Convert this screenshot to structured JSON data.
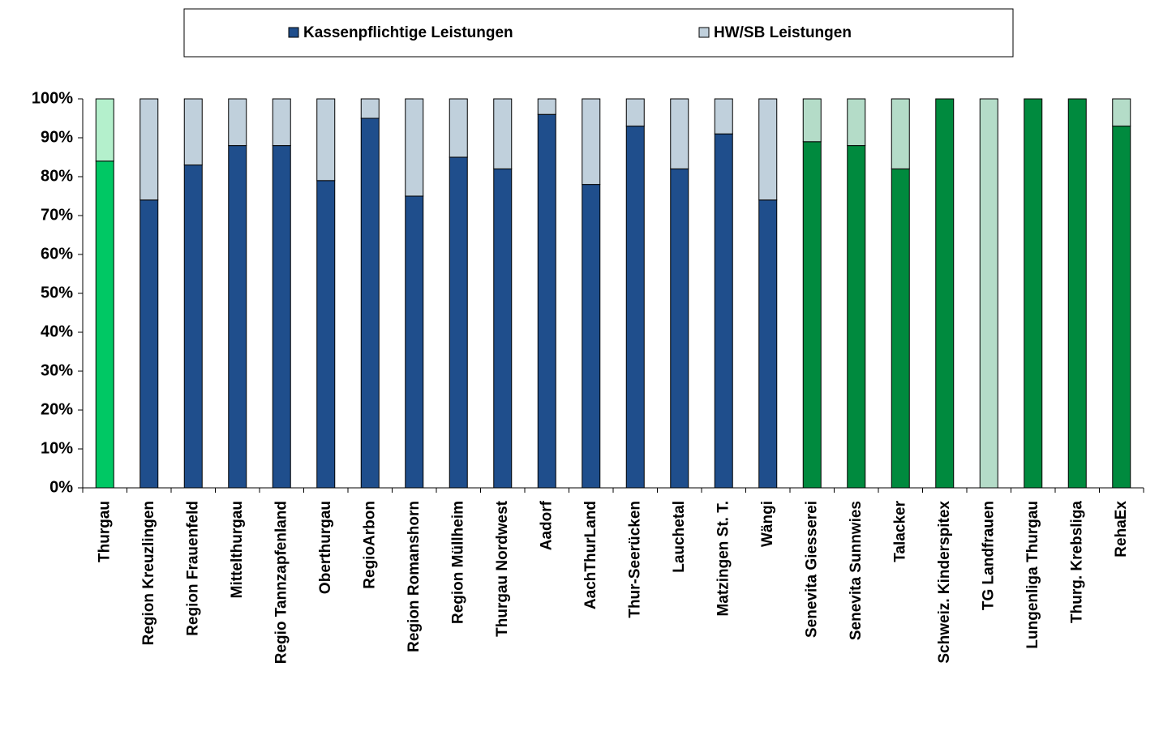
{
  "chart_data": {
    "type": "stacked_bar",
    "categories": [
      "Thurgau",
      "Region Kreuzlingen",
      "Region Frauenfeld",
      "Mittelthurgau",
      "Regio Tannzapfenland",
      "Oberthurgau",
      "RegioArbon",
      "Region Romanshorn",
      "Region Müllheim",
      "Thurgau Nordwest",
      "Aadorf",
      "AachThurLand",
      "Thur-Seerücken",
      "Lauchetal",
      "Matzingen St. T.",
      "Wängi",
      "Senevita Giesserei",
      "Senevita Sunnwies",
      "Talacker",
      "Schweiz. Kinderspitex",
      "TG Landfrauen",
      "Lungenliga Thurgau",
      "Thurg. Krebsliga",
      "RehaEx"
    ],
    "series": [
      {
        "name": "Kassenpflichtige Leistungen",
        "color": "#1f4e8c",
        "values": [
          84,
          74,
          83,
          88,
          88,
          79,
          95,
          75,
          85,
          82,
          96,
          78,
          93,
          82,
          91,
          74,
          89,
          88,
          82,
          100,
          0,
          100,
          100,
          93
        ],
        "colors": [
          "#00c864",
          "#1f4e8c",
          "#1f4e8c",
          "#1f4e8c",
          "#1f4e8c",
          "#1f4e8c",
          "#1f4e8c",
          "#1f4e8c",
          "#1f4e8c",
          "#1f4e8c",
          "#1f4e8c",
          "#1f4e8c",
          "#1f4e8c",
          "#1f4e8c",
          "#1f4e8c",
          "#1f4e8c",
          "#008a3e",
          "#008a3e",
          "#008a3e",
          "#008a3e",
          "#008a3e",
          "#008a3e",
          "#008a3e",
          "#008a3e"
        ]
      },
      {
        "name": "HW/SB Leistungen",
        "color": "#c0d0dc",
        "values": [
          16,
          26,
          17,
          12,
          12,
          21,
          5,
          25,
          15,
          18,
          4,
          22,
          7,
          18,
          9,
          26,
          11,
          12,
          18,
          0,
          100,
          0,
          0,
          7
        ],
        "colors": [
          "#b4f0cc",
          "#c0d0dc",
          "#c0d0dc",
          "#c0d0dc",
          "#c0d0dc",
          "#c0d0dc",
          "#c0d0dc",
          "#c0d0dc",
          "#c0d0dc",
          "#c0d0dc",
          "#c0d0dc",
          "#c0d0dc",
          "#c0d0dc",
          "#c0d0dc",
          "#c0d0dc",
          "#c0d0dc",
          "#b4dcc8",
          "#b4dcc8",
          "#b4dcc8",
          "#b4dcc8",
          "#b4dcc8",
          "#b4dcc8",
          "#b4dcc8",
          "#b4dcc8"
        ]
      }
    ],
    "ylim": [
      0,
      100
    ],
    "yticks": [
      {
        "value": 0,
        "label": "0%"
      },
      {
        "value": 10,
        "label": "10%"
      },
      {
        "value": 20,
        "label": "20%"
      },
      {
        "value": 30,
        "label": "30%"
      },
      {
        "value": 40,
        "label": "40%"
      },
      {
        "value": 50,
        "label": "50%"
      },
      {
        "value": 60,
        "label": "60%"
      },
      {
        "value": 70,
        "label": "70%"
      },
      {
        "value": 80,
        "label": "80%"
      },
      {
        "value": 90,
        "label": "90%"
      },
      {
        "value": 100,
        "label": "100%"
      }
    ],
    "legend": "top"
  }
}
